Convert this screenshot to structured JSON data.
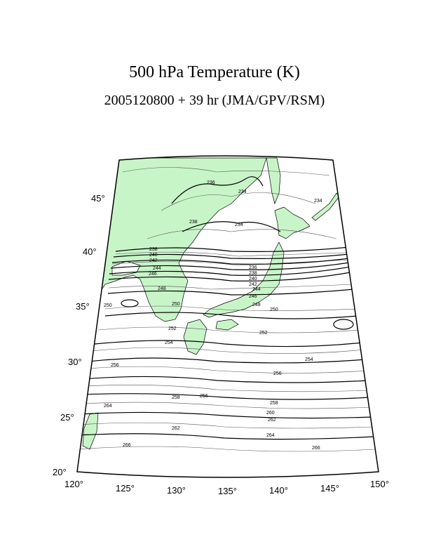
{
  "title": "500 hPa Temperature (K)",
  "subtitle": "2005120800 + 39 hr (JMA/GPV/RSM)",
  "lat_labels": [
    "45°",
    "40°",
    "35°",
    "30°",
    "25°",
    "20°"
  ],
  "lon_labels": [
    "120°",
    "125°",
    "130°",
    "135°",
    "140°",
    "145°",
    "150°"
  ],
  "contour_labels": {
    "north": [
      "236",
      "234",
      "238",
      "234",
      "234"
    ],
    "band_west": [
      "238",
      "240",
      "242",
      "244",
      "246",
      "248",
      "250",
      "250"
    ],
    "band_east": [
      "236",
      "238",
      "240",
      "242",
      "244",
      "246",
      "248",
      "250"
    ],
    "mid": [
      "252",
      "252",
      "254",
      "256",
      "254",
      "256",
      "258"
    ],
    "south": [
      "258",
      "256",
      "260",
      "262",
      "264",
      "262",
      "264",
      "266",
      "266"
    ]
  },
  "colors": {
    "land": "#c8f5c8",
    "coast": "#000000",
    "thick_contour": "#000000",
    "thin_contour": "#555555"
  }
}
